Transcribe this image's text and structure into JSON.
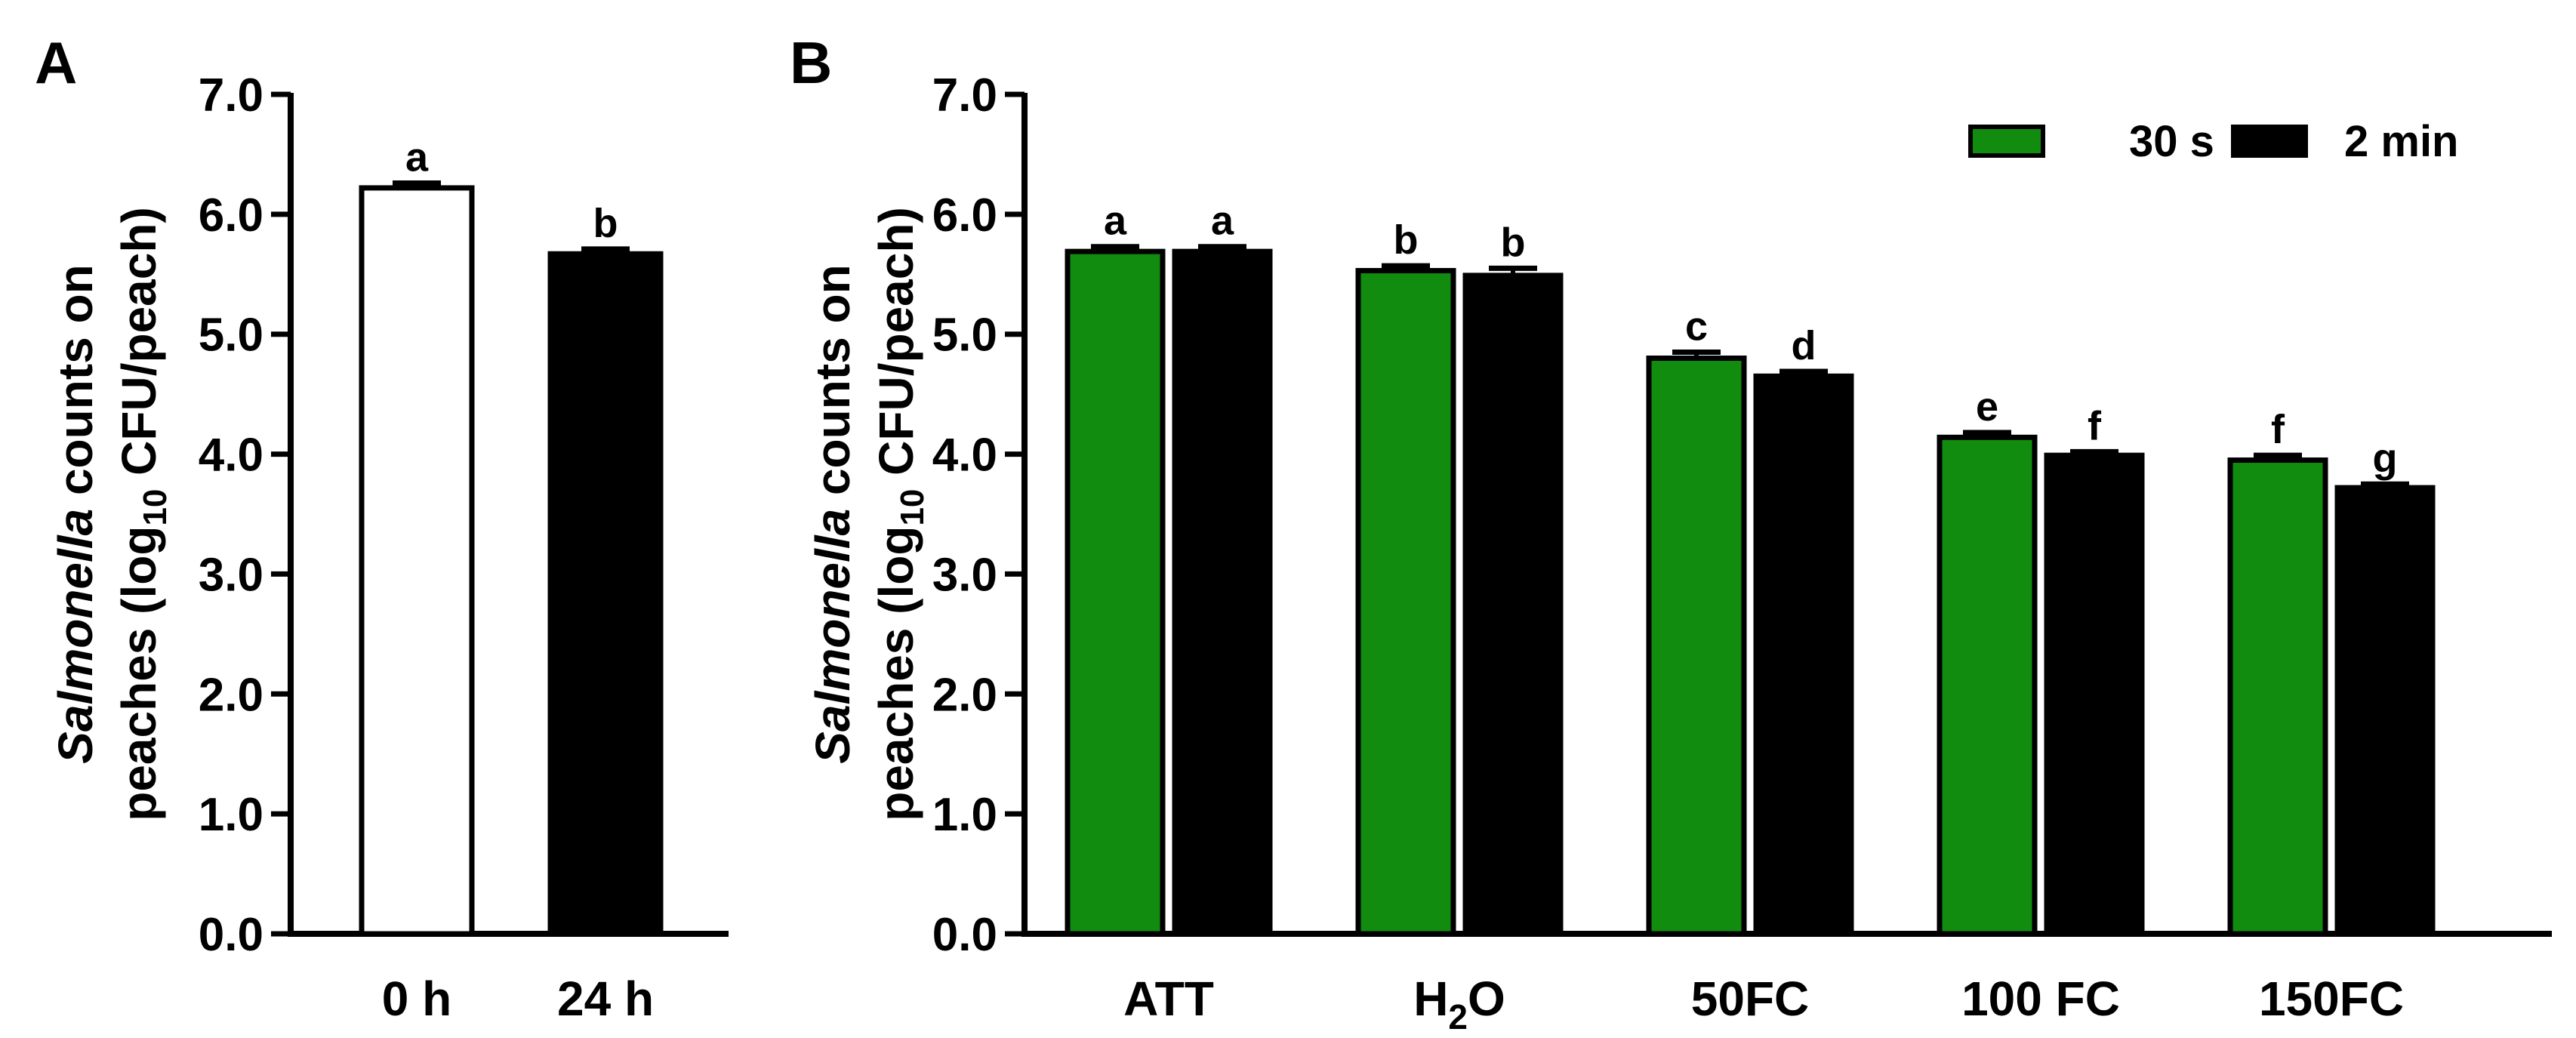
{
  "colors": {
    "green": "#118c0f",
    "black": "#000000",
    "white": "#ffffff",
    "axis": "#000000"
  },
  "chart_data": [
    {
      "type": "bar",
      "panel": "A",
      "categories": [
        "0 h",
        "24 h"
      ],
      "values": [
        6.22,
        5.67
      ],
      "errors": [
        0.04,
        0.04
      ],
      "letters": [
        "a",
        "b"
      ],
      "fills": [
        "white",
        "black"
      ],
      "ylim": [
        0,
        7
      ],
      "yticks": [
        "0.0",
        "1.0",
        "2.0",
        "3.0",
        "4.0",
        "5.0",
        "6.0",
        "7.0"
      ],
      "ylabel": {
        "italic": "Salmonella",
        "rest": " counts on",
        "line2_pre": "peaches (log",
        "line2_sub": "10",
        "line2_post": " CFU/peach)"
      }
    },
    {
      "type": "bar",
      "panel": "B",
      "categories": [
        {
          "main": "ATT",
          "sub": "",
          "post": ""
        },
        {
          "main": "H",
          "sub": "2",
          "post": "O"
        },
        {
          "main": "50FC",
          "sub": "",
          "post": ""
        },
        {
          "main": "100 FC",
          "sub": "",
          "post": ""
        },
        {
          "main": "150FC",
          "sub": "",
          "post": ""
        }
      ],
      "series": [
        {
          "name": "30 s",
          "color": "green",
          "values": [
            5.69,
            5.53,
            4.8,
            4.14,
            3.95
          ],
          "errors": [
            0.04,
            0.04,
            0.05,
            0.04,
            0.04
          ],
          "letters": [
            "a",
            "b",
            "c",
            "e",
            "f"
          ]
        },
        {
          "name": "2 min",
          "color": "black",
          "values": [
            5.69,
            5.49,
            4.65,
            3.99,
            3.72
          ],
          "errors": [
            0.04,
            0.06,
            0.04,
            0.03,
            0.03
          ],
          "letters": [
            "a",
            "b",
            "d",
            "f",
            "g"
          ]
        }
      ],
      "ylim": [
        0,
        7
      ],
      "yticks": [
        "0.0",
        "1.0",
        "2.0",
        "3.0",
        "4.0",
        "5.0",
        "6.0",
        "7.0"
      ],
      "ylabel": {
        "italic": "Salmonella",
        "rest": " counts on",
        "line2_pre": "peaches (log",
        "line2_sub": "10",
        "line2_post": " CFU/peach)"
      },
      "legend": {
        "position": "top-right"
      }
    }
  ]
}
